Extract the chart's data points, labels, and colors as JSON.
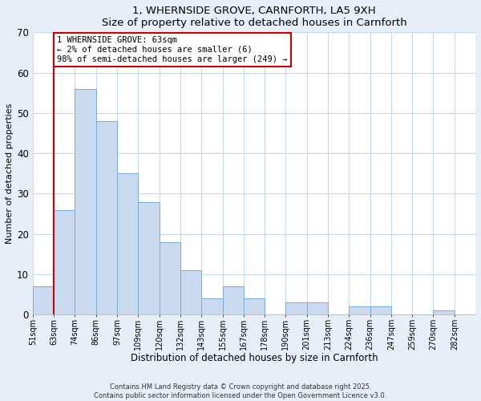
{
  "title": "1, WHERNSIDE GROVE, CARNFORTH, LA5 9XH",
  "subtitle": "Size of property relative to detached houses in Carnforth",
  "xlabel": "Distribution of detached houses by size in Carnforth",
  "ylabel": "Number of detached properties",
  "bin_labels": [
    "51sqm",
    "63sqm",
    "74sqm",
    "86sqm",
    "97sqm",
    "109sqm",
    "120sqm",
    "132sqm",
    "143sqm",
    "155sqm",
    "167sqm",
    "178sqm",
    "190sqm",
    "201sqm",
    "213sqm",
    "224sqm",
    "236sqm",
    "247sqm",
    "259sqm",
    "270sqm",
    "282sqm"
  ],
  "bar_heights": [
    7,
    26,
    56,
    48,
    35,
    28,
    18,
    11,
    4,
    7,
    4,
    0,
    3,
    3,
    0,
    2,
    2,
    0,
    0,
    1,
    0
  ],
  "bar_color": "#c9d9ef",
  "bar_edge_color": "#7aadd4",
  "vline_x": 1,
  "vline_color": "#cc0000",
  "ylim": [
    0,
    70
  ],
  "yticks": [
    0,
    10,
    20,
    30,
    40,
    50,
    60,
    70
  ],
  "annotation_title": "1 WHERNSIDE GROVE: 63sqm",
  "annotation_line1": "← 2% of detached houses are smaller (6)",
  "annotation_line2": "98% of semi-detached houses are larger (249) →",
  "annotation_box_color": "#cc0000",
  "footer_line1": "Contains HM Land Registry data © Crown copyright and database right 2025.",
  "footer_line2": "Contains public sector information licensed under the Open Government Licence v3.0.",
  "background_color": "#e8eef8",
  "plot_background": "#ffffff",
  "grid_color": "#c8d8ec"
}
